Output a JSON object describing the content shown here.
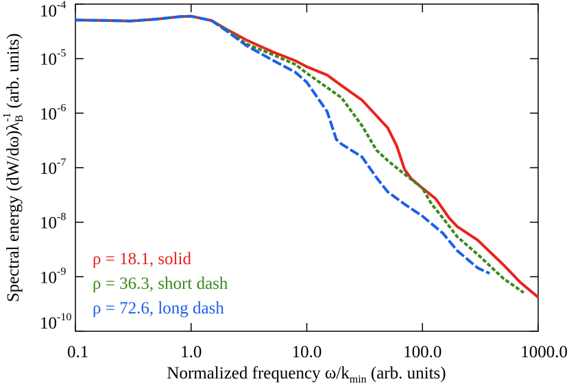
{
  "chart_data": {
    "type": "line",
    "log_x": true,
    "log_y": true,
    "x_label": {
      "text": "Normalized frequency ω/k",
      "sub": "min",
      "tail": " (arb. units)"
    },
    "y_label": {
      "text": "Spectral energy (dW/dω)λ",
      "sub": "B",
      "sup": "-1",
      "tail": " (arb. units)"
    },
    "xlim": [
      0.1,
      1000
    ],
    "ylim": [
      1e-10,
      0.0001
    ],
    "xticks": [
      0.1,
      {
        "value": 1,
        "label": "1.0"
      },
      {
        "value": 10,
        "label": "10.0"
      },
      {
        "value": 100,
        "label": "100.0"
      },
      {
        "value": 1000,
        "label": "1000.0"
      }
    ],
    "yticks": [
      {
        "value": 1e-10,
        "label": "10",
        "exp": "-10"
      },
      {
        "value": 1e-09,
        "label": "10",
        "exp": "-9"
      },
      {
        "value": 1e-08,
        "label": "10",
        "exp": "-8"
      },
      {
        "value": 1e-07,
        "label": "10",
        "exp": "-7"
      },
      {
        "value": 1e-06,
        "label": "10",
        "exp": "-6"
      },
      {
        "value": 1e-05,
        "label": "10",
        "exp": "-5"
      },
      {
        "value": 0.0001,
        "label": "10",
        "exp": "-4"
      }
    ],
    "series": [
      {
        "name": "ρ = 18.1, solid",
        "color": "#e8231c",
        "linestyle": "solid",
        "x": [
          0.1,
          0.2,
          0.3,
          0.5,
          0.8,
          1.0,
          1.5,
          2,
          3,
          5,
          8,
          10,
          15,
          20,
          30,
          50,
          60,
          70,
          80,
          100,
          130,
          170,
          200,
          300,
          500,
          700,
          1000
        ],
        "values": [
          5.1e-05,
          5e-05,
          4.9e-05,
          5.3e-05,
          5.9e-05,
          6e-05,
          5e-05,
          3.5e-05,
          2.2e-05,
          1.35e-05,
          9.1e-06,
          7.1e-06,
          5e-06,
          3.2e-06,
          1.74e-06,
          5.4e-07,
          2.5e-07,
          9.3e-08,
          6.3e-08,
          4.2e-08,
          2.7e-08,
          1.2e-08,
          8.3e-09,
          4.7e-09,
          1.66e-09,
          7.9e-10,
          4.2e-10
        ]
      },
      {
        "name": "ρ = 36.3, short dash",
        "color": "#3a8a1c",
        "linestyle": "short-dash",
        "x": [
          0.1,
          0.2,
          0.3,
          0.5,
          0.8,
          1.0,
          1.5,
          2,
          3,
          5,
          8,
          10,
          15,
          20,
          30,
          40,
          50,
          70,
          100,
          120,
          150,
          200,
          300,
          500,
          750
        ],
        "values": [
          5.1e-05,
          5e-05,
          4.9e-05,
          5.3e-05,
          5.9e-05,
          6e-05,
          5e-05,
          3.5e-05,
          1.86e-05,
          1.2e-05,
          7.8e-06,
          5.4e-06,
          2.95e-06,
          1.91e-06,
          5.9e-07,
          2.1e-07,
          1.35e-07,
          7.6e-08,
          4.2e-08,
          2.14e-08,
          1.2e-08,
          5.4e-09,
          2.57e-09,
          9.3e-10,
          5.1e-10
        ]
      },
      {
        "name": "ρ = 72.6, long dash",
        "color": "#1c5fe8",
        "linestyle": "long-dash",
        "x": [
          0.1,
          0.2,
          0.3,
          0.5,
          0.8,
          1.0,
          1.5,
          2,
          3,
          5,
          8,
          10,
          15,
          18,
          20,
          30,
          40,
          50,
          70,
          100,
          150,
          200,
          300,
          380
        ],
        "values": [
          5.1e-05,
          5e-05,
          4.9e-05,
          5.3e-05,
          5.9e-05,
          6e-05,
          5e-05,
          3.3e-05,
          1.74e-05,
          9.5e-06,
          5.6e-06,
          3.7e-06,
          1.07e-06,
          3.3e-07,
          2.7e-07,
          1.58e-07,
          6.6e-08,
          3.6e-08,
          2.14e-08,
          1.29e-08,
          6.3e-09,
          3e-09,
          1.45e-09,
          1.15e-09
        ]
      }
    ]
  }
}
